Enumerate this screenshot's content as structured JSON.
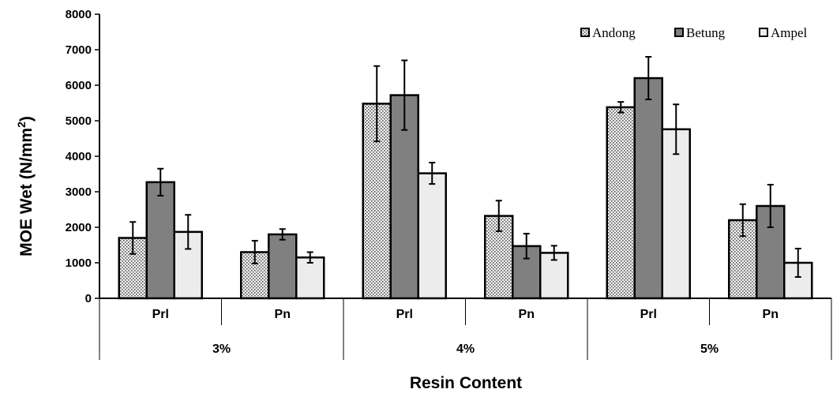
{
  "chart_data": {
    "type": "bar",
    "title": "",
    "ylabel": "MOE Wet (N/mm²)",
    "ylabel_parts": [
      "MOE Wet (N/mm",
      "2",
      ")"
    ],
    "xlabel": "Resin Content",
    "ylim": [
      0,
      8000
    ],
    "yticks": [
      0,
      1000,
      2000,
      3000,
      4000,
      5000,
      6000,
      7000,
      8000
    ],
    "grid": false,
    "legend_position": "top-right",
    "groups": [
      {
        "label": "3%",
        "categories": [
          "Prl",
          "Pn"
        ]
      },
      {
        "label": "4%",
        "categories": [
          "Prl",
          "Pn"
        ]
      },
      {
        "label": "5%",
        "categories": [
          "Prl",
          "Pn"
        ]
      }
    ],
    "categories": [
      "Prl",
      "Pn",
      "Prl",
      "Pn",
      "Prl",
      "Pn"
    ],
    "series": [
      {
        "name": "Andong",
        "pattern": "dotted",
        "values": [
          1700,
          1300,
          5480,
          2320,
          5380,
          2200
        ],
        "errors": [
          450,
          320,
          1060,
          430,
          150,
          450
        ]
      },
      {
        "name": "Betung",
        "pattern": "solid-dark",
        "values": [
          3270,
          1800,
          5720,
          1470,
          6200,
          2600
        ],
        "errors": [
          380,
          150,
          980,
          350,
          600,
          600
        ]
      },
      {
        "name": "Ampel",
        "pattern": "solid-light",
        "values": [
          1870,
          1150,
          3520,
          1280,
          4760,
          1000
        ],
        "errors": [
          480,
          150,
          300,
          200,
          700,
          400
        ]
      }
    ],
    "colors": {
      "Andong": "#c8c8c8",
      "Betung": "#808080",
      "Ampel": "#ececec"
    }
  }
}
